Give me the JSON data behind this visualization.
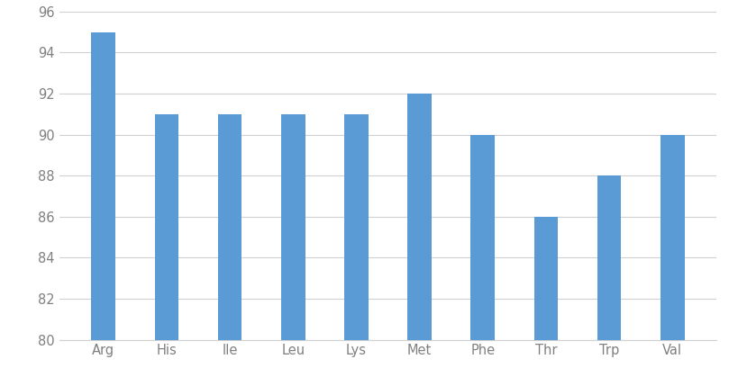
{
  "categories": [
    "Arg",
    "His",
    "Ile",
    "Leu",
    "Lys",
    "Met",
    "Phe",
    "Thr",
    "Trp",
    "Val"
  ],
  "values": [
    95,
    91,
    91,
    91,
    91,
    92,
    90,
    86,
    88,
    90
  ],
  "bar_color": "#5B9BD5",
  "ylim": [
    80,
    96
  ],
  "yticks": [
    80,
    82,
    84,
    86,
    88,
    90,
    92,
    94,
    96
  ],
  "background_color": "#ffffff",
  "grid_color": "#d0d0d0",
  "tick_color": "#808080",
  "bar_width": 0.38,
  "tick_fontsize": 10.5
}
